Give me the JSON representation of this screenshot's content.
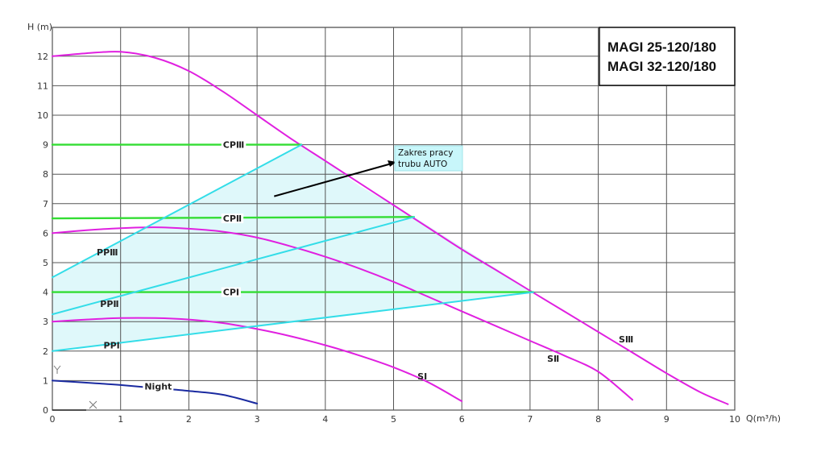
{
  "chart_data": {
    "type": "line",
    "title_lines": [
      "MAGI 25-120/180",
      "MAGI 32-120/180"
    ],
    "xlabel": "Q(m³/h)",
    "ylabel": "H (m)",
    "xlim": [
      0,
      10
    ],
    "ylim": [
      0,
      13
    ],
    "x_ticks": [
      "0",
      "1",
      "2",
      "3",
      "4",
      "5",
      "6",
      "7",
      "8",
      "9",
      "10"
    ],
    "y_ticks": [
      "0",
      "1",
      "2",
      "3",
      "4",
      "5",
      "6",
      "7",
      "8",
      "9",
      "10",
      "11",
      "12"
    ],
    "grid": true,
    "colors": {
      "speed_curve": "#e020e0",
      "constant_pressure": "#33dd33",
      "proportional_pressure": "#33dde8",
      "night": "#1a2aa0",
      "auto_zone_fill": "#dff8fa"
    },
    "auto_zone": {
      "label_lines": [
        "Zakres pracy",
        "trubu AUTO"
      ],
      "polygon": [
        [
          0,
          2
        ],
        [
          0,
          4.5
        ],
        [
          3.65,
          9
        ],
        [
          4.5,
          7.6
        ],
        [
          5.3,
          6.55
        ],
        [
          7.05,
          4
        ],
        [
          0,
          2
        ]
      ]
    },
    "series": [
      {
        "name": "SⅢ",
        "kind": "speed",
        "points": [
          [
            0,
            12
          ],
          [
            0.5,
            12.1
          ],
          [
            1,
            12.15
          ],
          [
            1.5,
            11.95
          ],
          [
            2,
            11.5
          ],
          [
            2.5,
            10.8
          ],
          [
            3,
            10
          ],
          [
            3.5,
            9.2
          ],
          [
            4,
            8.45
          ],
          [
            4.5,
            7.7
          ],
          [
            5,
            6.95
          ],
          [
            5.5,
            6.2
          ],
          [
            6,
            5.45
          ],
          [
            6.5,
            4.75
          ],
          [
            7,
            4.05
          ],
          [
            7.5,
            3.35
          ],
          [
            8,
            2.65
          ],
          [
            8.5,
            1.95
          ],
          [
            9,
            1.25
          ],
          [
            9.5,
            0.6
          ],
          [
            9.9,
            0.2
          ]
        ],
        "label_at": [
          8.3,
          2.4
        ]
      },
      {
        "name": "SⅡ",
        "kind": "speed",
        "points": [
          [
            0,
            6
          ],
          [
            0.5,
            6.1
          ],
          [
            1,
            6.17
          ],
          [
            1.5,
            6.2
          ],
          [
            2,
            6.15
          ],
          [
            2.5,
            6.05
          ],
          [
            3,
            5.85
          ],
          [
            3.5,
            5.55
          ],
          [
            4,
            5.2
          ],
          [
            4.5,
            4.8
          ],
          [
            5,
            4.35
          ],
          [
            5.5,
            3.85
          ],
          [
            6,
            3.35
          ],
          [
            6.5,
            2.85
          ],
          [
            7,
            2.35
          ],
          [
            7.5,
            1.85
          ],
          [
            8,
            1.3
          ],
          [
            8.5,
            0.35
          ]
        ],
        "label_at": [
          7.25,
          1.75
        ]
      },
      {
        "name": "SⅠ",
        "kind": "speed",
        "points": [
          [
            0,
            3
          ],
          [
            0.5,
            3.07
          ],
          [
            1,
            3.12
          ],
          [
            1.5,
            3.12
          ],
          [
            2,
            3.07
          ],
          [
            2.5,
            2.95
          ],
          [
            3,
            2.75
          ],
          [
            3.5,
            2.5
          ],
          [
            4,
            2.2
          ],
          [
            4.5,
            1.85
          ],
          [
            5,
            1.45
          ],
          [
            5.5,
            0.95
          ],
          [
            6,
            0.3
          ]
        ],
        "label_at": [
          5.35,
          1.15
        ]
      },
      {
        "name": "CPⅢ",
        "kind": "constant",
        "points": [
          [
            0,
            9
          ],
          [
            3.65,
            9
          ]
        ],
        "label_at": [
          2.5,
          9
        ]
      },
      {
        "name": "CPⅡ",
        "kind": "constant",
        "points": [
          [
            0,
            6.5
          ],
          [
            5.3,
            6.55
          ]
        ],
        "label_at": [
          2.5,
          6.5
        ]
      },
      {
        "name": "CPⅠ",
        "kind": "constant",
        "points": [
          [
            0,
            4
          ],
          [
            7.05,
            4
          ]
        ],
        "label_at": [
          2.5,
          4
        ]
      },
      {
        "name": "PPⅢ",
        "kind": "proportional",
        "points": [
          [
            0,
            4.5
          ],
          [
            3.65,
            9
          ]
        ],
        "label_at": [
          0.65,
          5.35
        ]
      },
      {
        "name": "PPⅡ",
        "kind": "proportional",
        "points": [
          [
            0,
            3.25
          ],
          [
            5.3,
            6.55
          ]
        ],
        "label_at": [
          0.7,
          3.6
        ]
      },
      {
        "name": "PPⅠ",
        "kind": "proportional",
        "points": [
          [
            0,
            2
          ],
          [
            7.05,
            4
          ]
        ],
        "label_at": [
          0.75,
          2.2
        ]
      },
      {
        "name": "Night",
        "kind": "night",
        "points": [
          [
            0,
            1
          ],
          [
            0.5,
            0.93
          ],
          [
            1,
            0.85
          ],
          [
            1.5,
            0.75
          ],
          [
            2,
            0.65
          ],
          [
            2.5,
            0.52
          ],
          [
            3,
            0.22
          ]
        ],
        "label_at": [
          1.35,
          0.8
        ]
      }
    ]
  }
}
